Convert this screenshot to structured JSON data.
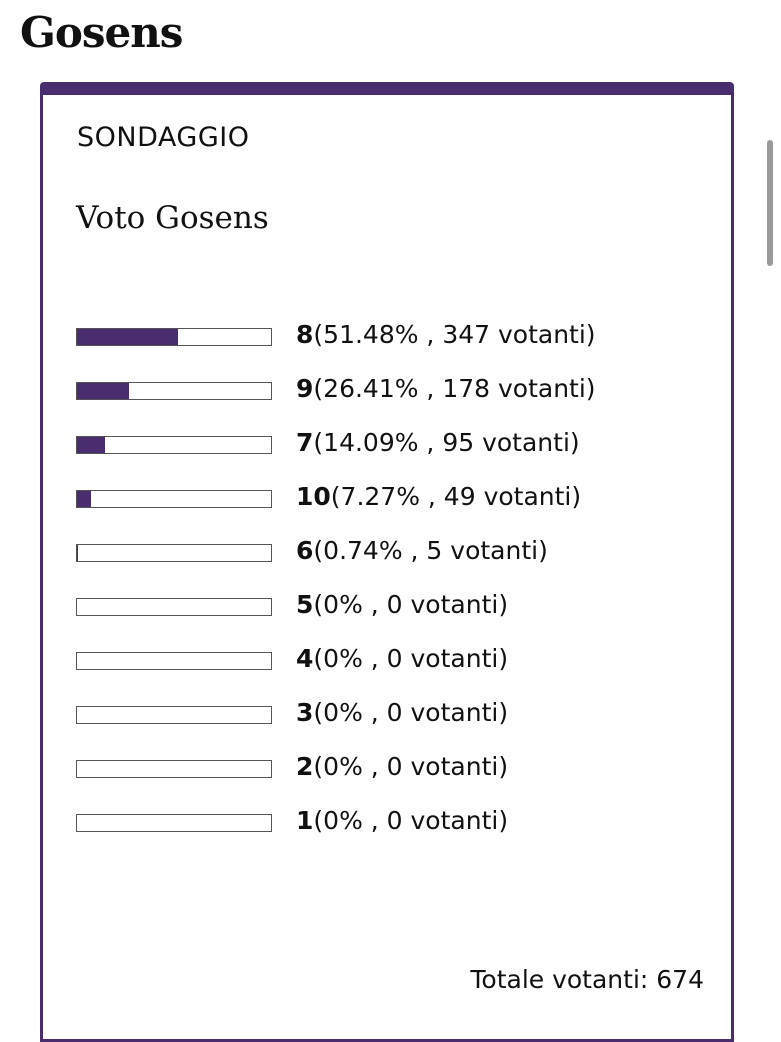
{
  "header": {
    "title": "Gosens"
  },
  "poll": {
    "kicker": "SONDAGGIO",
    "question": "Voto Gosens",
    "options": [
      {
        "label": "8",
        "percent": 51.48,
        "detail": "(51.48% , 347 votanti)"
      },
      {
        "label": "9",
        "percent": 26.41,
        "detail": "(26.41% , 178 votanti)"
      },
      {
        "label": "7",
        "percent": 14.09,
        "detail": "(14.09% , 95 votanti)"
      },
      {
        "label": "10",
        "percent": 7.27,
        "detail": "(7.27% , 49 votanti)"
      },
      {
        "label": "6",
        "percent": 0.74,
        "detail": "(0.74% , 5 votanti)"
      },
      {
        "label": "5",
        "percent": 0,
        "detail": "(0% , 0 votanti)"
      },
      {
        "label": "4",
        "percent": 0,
        "detail": "(0% , 0 votanti)"
      },
      {
        "label": "3",
        "percent": 0,
        "detail": "(0% , 0 votanti)"
      },
      {
        "label": "2",
        "percent": 0,
        "detail": "(0% , 0 votanti)"
      },
      {
        "label": "1",
        "percent": 0,
        "detail": "(0% , 0 votanti)"
      }
    ],
    "total_label": "Totale votanti:",
    "total": 674
  }
}
